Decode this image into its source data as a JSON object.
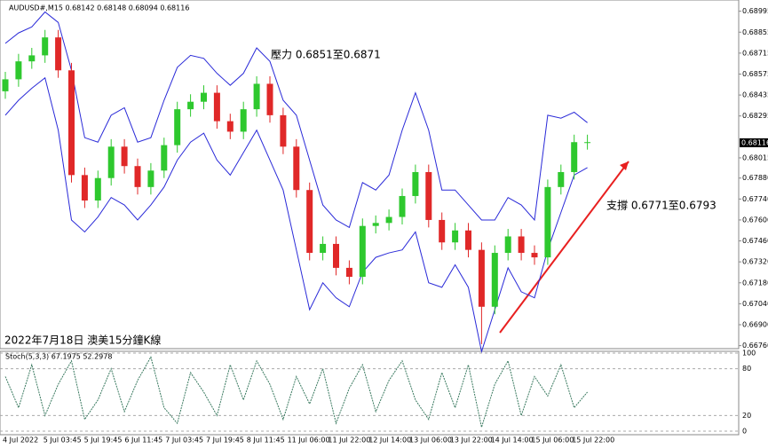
{
  "chart_data": {
    "type": "candlestick",
    "header": "AUDUSD#,M15  0.68142 0.68148 0.68094 0.68116",
    "annotations": [
      "壓力 0.6851至0.6871",
      "支撐 0.6771至0.6793",
      "2022年7月18日 澳美15分鐘K線"
    ],
    "current_price": 0.68116,
    "up_color": "#2ec82e",
    "down_color": "#e02828",
    "band_color": "#2a2ad8",
    "open": [
      0.6846,
      0.6854,
      0.6866,
      0.687,
      0.6882,
      0.686,
      0.679,
      0.6773,
      0.6788,
      0.6809,
      0.6796,
      0.6782,
      0.6793,
      0.681,
      0.6834,
      0.6839,
      0.6845,
      0.6826,
      0.6819,
      0.6834,
      0.6851,
      0.683,
      0.6809,
      0.678,
      0.6738,
      0.6744,
      0.6728,
      0.6722,
      0.6756,
      0.6758,
      0.6762,
      0.6776,
      0.6792,
      0.676,
      0.6745,
      0.6753,
      0.674,
      0.6702,
      0.6738,
      0.6749,
      0.6738,
      0.6735,
      0.6782,
      0.6792,
      0.6812
    ],
    "high": [
      0.6859,
      0.6871,
      0.6875,
      0.6887,
      0.6887,
      0.6865,
      0.6795,
      0.6793,
      0.6814,
      0.6814,
      0.6801,
      0.6798,
      0.6815,
      0.6839,
      0.6844,
      0.685,
      0.685,
      0.6831,
      0.6839,
      0.6856,
      0.6856,
      0.6835,
      0.6814,
      0.6785,
      0.6749,
      0.6749,
      0.6733,
      0.6761,
      0.6763,
      0.6767,
      0.6781,
      0.6797,
      0.6797,
      0.6765,
      0.6758,
      0.6758,
      0.6745,
      0.6743,
      0.6754,
      0.6754,
      0.6743,
      0.6787,
      0.6797,
      0.6817,
      0.6817
    ],
    "low": [
      0.6841,
      0.6849,
      0.6861,
      0.6865,
      0.6855,
      0.6785,
      0.6768,
      0.6768,
      0.6783,
      0.6791,
      0.6777,
      0.6777,
      0.6788,
      0.6805,
      0.6829,
      0.6834,
      0.6821,
      0.6814,
      0.6814,
      0.6829,
      0.6825,
      0.6804,
      0.6775,
      0.6733,
      0.6733,
      0.6723,
      0.6717,
      0.6717,
      0.6751,
      0.6753,
      0.6757,
      0.6771,
      0.6755,
      0.674,
      0.674,
      0.6735,
      0.6677,
      0.6697,
      0.6733,
      0.6733,
      0.673,
      0.673,
      0.6777,
      0.6787,
      0.6807
    ],
    "close": [
      0.6854,
      0.6866,
      0.687,
      0.6882,
      0.686,
      0.679,
      0.6773,
      0.6788,
      0.6809,
      0.6796,
      0.6782,
      0.6793,
      0.681,
      0.6834,
      0.6839,
      0.6845,
      0.6826,
      0.6819,
      0.6834,
      0.6851,
      0.683,
      0.6809,
      0.678,
      0.6738,
      0.6744,
      0.6728,
      0.6722,
      0.6756,
      0.6758,
      0.6762,
      0.6776,
      0.6792,
      0.676,
      0.6745,
      0.6753,
      0.674,
      0.6702,
      0.6738,
      0.6749,
      0.6738,
      0.6735,
      0.6782,
      0.6792,
      0.6812,
      0.6812
    ],
    "band_upper": [
      0.6878,
      0.6885,
      0.6889,
      0.6899,
      0.6892,
      0.686,
      0.6815,
      0.6812,
      0.683,
      0.6835,
      0.6812,
      0.6815,
      0.684,
      0.6862,
      0.687,
      0.6868,
      0.6858,
      0.685,
      0.6858,
      0.6875,
      0.6866,
      0.684,
      0.683,
      0.68,
      0.677,
      0.676,
      0.6755,
      0.6785,
      0.678,
      0.679,
      0.682,
      0.6845,
      0.682,
      0.678,
      0.678,
      0.677,
      0.676,
      0.676,
      0.6775,
      0.677,
      0.676,
      0.683,
      0.6828,
      0.6832,
      0.6825
    ],
    "band_lower": [
      0.683,
      0.684,
      0.6848,
      0.6855,
      0.682,
      0.676,
      0.6752,
      0.6762,
      0.6775,
      0.677,
      0.676,
      0.677,
      0.6782,
      0.68,
      0.6812,
      0.6818,
      0.68,
      0.679,
      0.6805,
      0.682,
      0.68,
      0.678,
      0.674,
      0.67,
      0.6718,
      0.6708,
      0.6702,
      0.6725,
      0.6735,
      0.6738,
      0.674,
      0.6752,
      0.6718,
      0.6715,
      0.673,
      0.6715,
      0.6672,
      0.67,
      0.6728,
      0.6712,
      0.6708,
      0.674,
      0.6765,
      0.679,
      0.6795
    ],
    "ylim": [
      0.6674,
      0.6907
    ],
    "yticks": [
      0.68995,
      0.68855,
      0.68715,
      0.68575,
      0.68435,
      0.68295,
      0.68015,
      {
        "value": 0.6788,
        "label": "0.67880"
      },
      {
        "value": 0.6774,
        "label": "0.67740"
      },
      {
        "value": 0.676,
        "label": "0.67600"
      },
      {
        "value": 0.6746,
        "label": "0.67460"
      },
      {
        "value": 0.6732,
        "label": "0.67320"
      },
      {
        "value": 0.6718,
        "label": "0.67180"
      },
      {
        "value": 0.6704,
        "label": "0.67040"
      },
      {
        "value": 0.669,
        "label": "0.66900"
      },
      {
        "value": 0.6676,
        "label": "0.66760"
      }
    ],
    "x_labels": [
      "4 Jul 2022",
      "5 Jul 03:45",
      "5 Jul 19:45",
      "6 Jul 11:45",
      "7 Jul 03:45",
      "7 Jul 19:45",
      "8 Jul 11:45",
      "11 Jul 06:00",
      "11 Jul 22:00",
      "12 Jul 14:00",
      "13 Jul 06:00",
      "13 Jul 22:00",
      "14 Jul 14:00",
      "15 Jul 06:00",
      "15 Jul 22:00"
    ],
    "stoch": {
      "label": "Stoch(5,3,3) 67.1975 52.2978",
      "color": "#3a7a60",
      "ylim": [
        0,
        100
      ],
      "yticks": [
        100,
        80,
        20,
        0
      ],
      "values": [
        70,
        30,
        85,
        20,
        60,
        90,
        15,
        40,
        80,
        25,
        65,
        95,
        30,
        10,
        75,
        50,
        20,
        85,
        40,
        90,
        60,
        15,
        70,
        35,
        80,
        10,
        55,
        85,
        25,
        65,
        90,
        40,
        15,
        75,
        30,
        85,
        5,
        60,
        90,
        20,
        70,
        45,
        85,
        30,
        50
      ]
    }
  }
}
